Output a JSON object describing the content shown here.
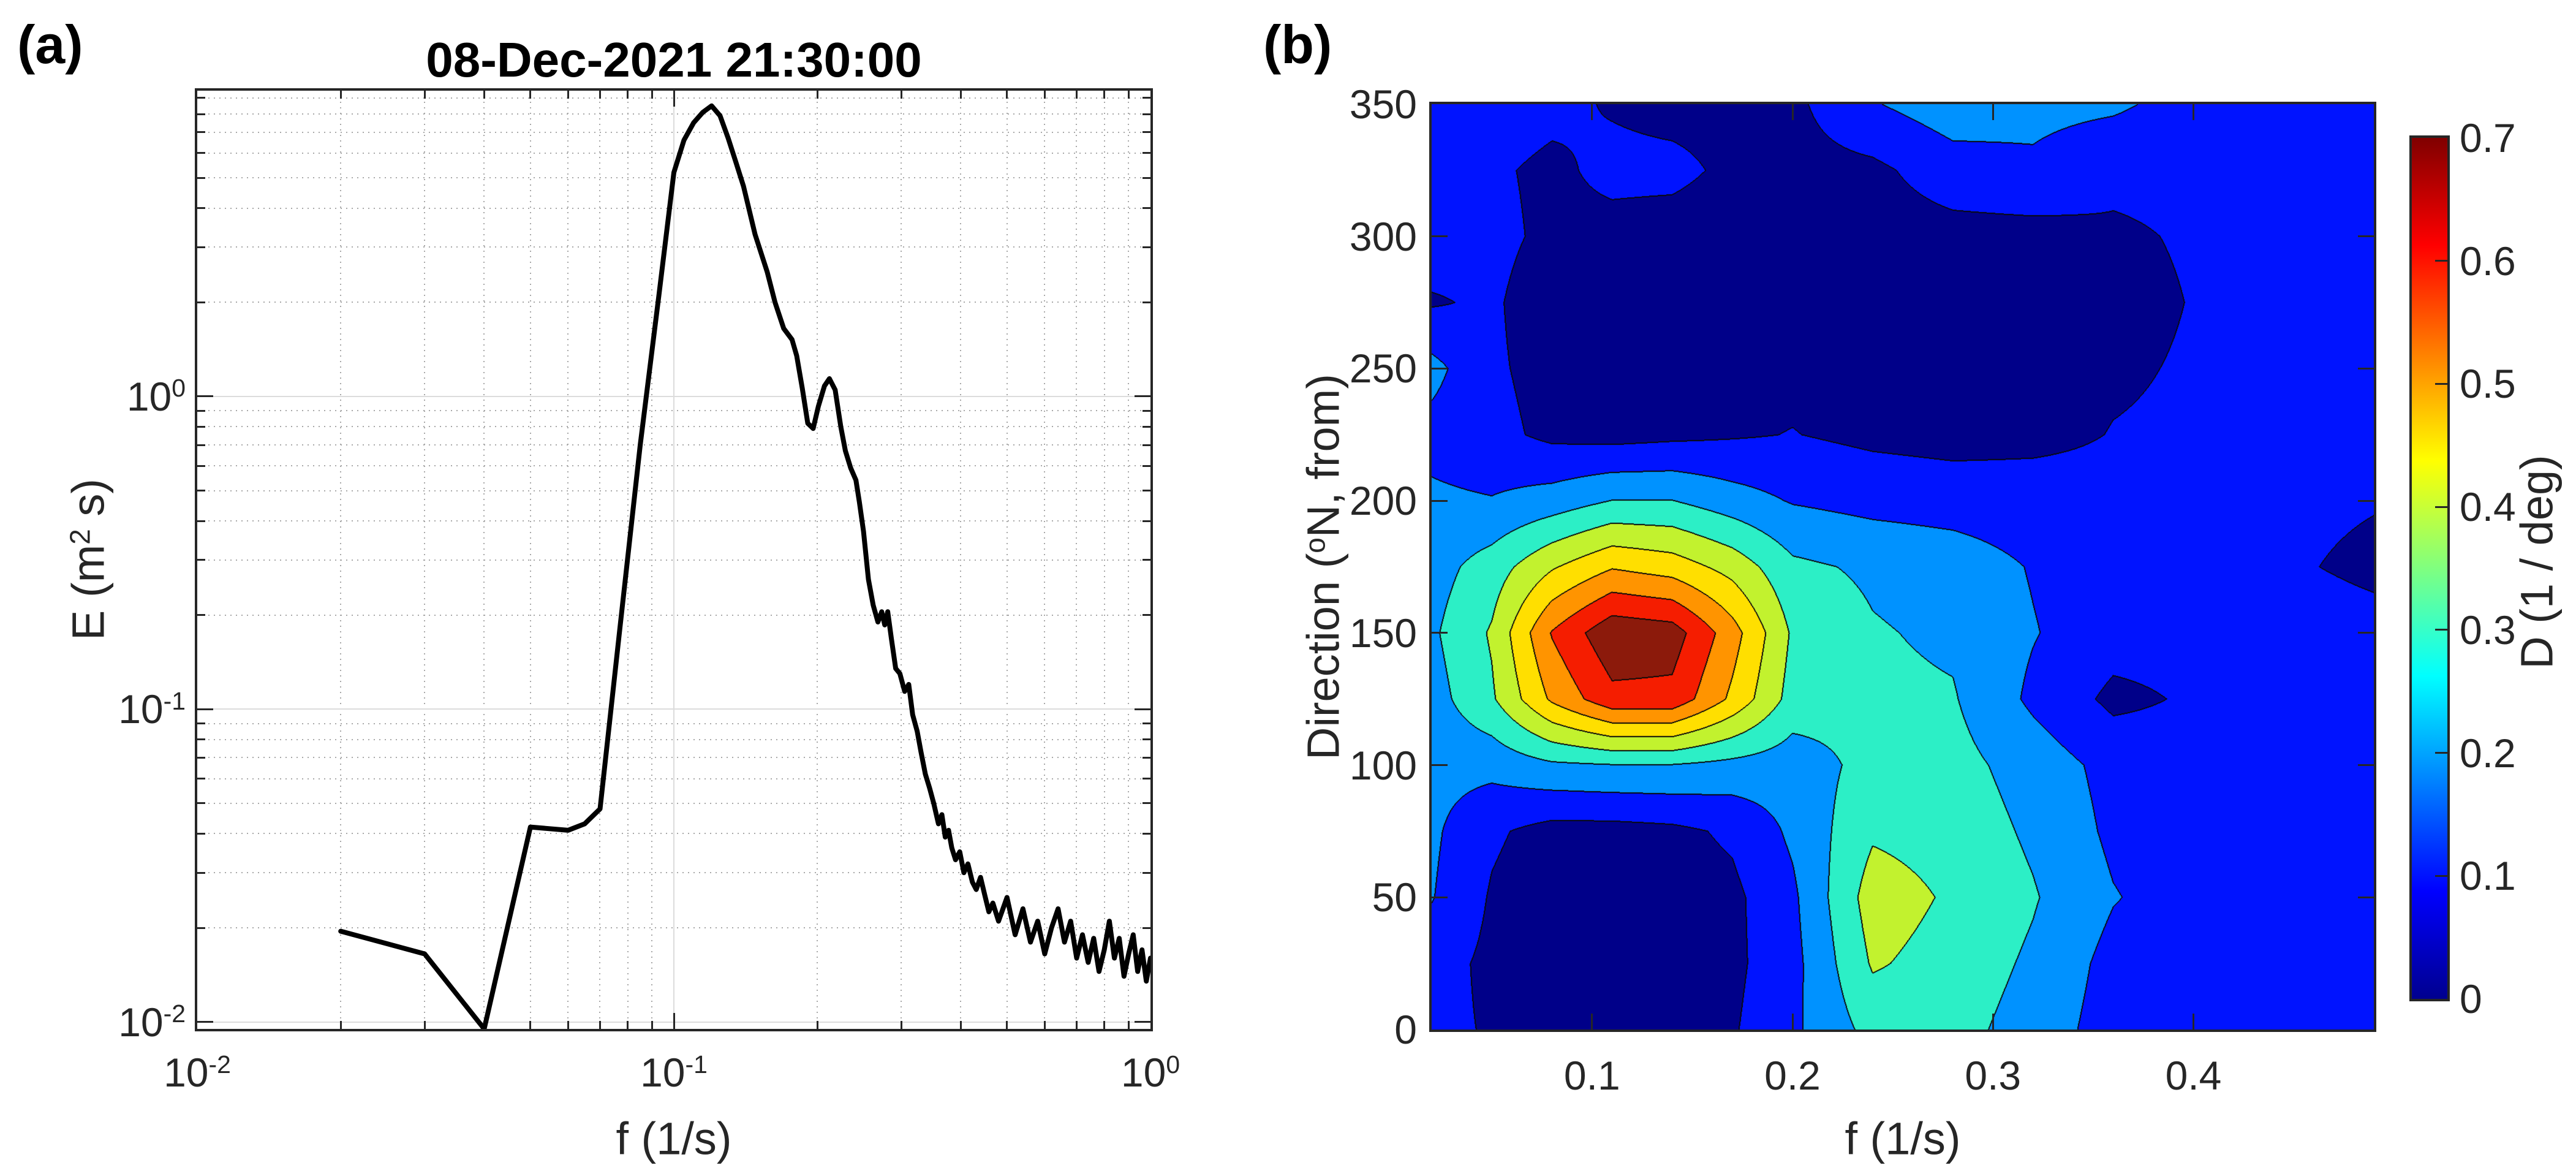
{
  "figure": {
    "background": "#ffffff",
    "panel_a": {
      "label": "(a)",
      "title": "08-Dec-2021 21:30:00",
      "xlabel": "f (1/s)",
      "ylabel_pre": "E (m",
      "ylabel_sup": "2",
      "ylabel_post": " s)",
      "xticks": [
        {
          "value": 0.01,
          "base": "10",
          "exp": "-2"
        },
        {
          "value": 0.1,
          "base": "10",
          "exp": "-1"
        },
        {
          "value": 1,
          "base": "10",
          "exp": "0"
        }
      ],
      "yticks": [
        {
          "value": 0.01,
          "base": "10",
          "exp": "-2"
        },
        {
          "value": 0.1,
          "base": "10",
          "exp": "-1"
        },
        {
          "value": 1,
          "base": "10",
          "exp": "0"
        }
      ]
    },
    "panel_b": {
      "label": "(b)",
      "xlabel": "f (1/s)",
      "ylabel_pre": "Direction (",
      "ylabel_sup": "o",
      "ylabel_post": "N, from)",
      "xticks": [
        {
          "value": 0.1,
          "label": "0.1"
        },
        {
          "value": 0.2,
          "label": "0.2"
        },
        {
          "value": 0.3,
          "label": "0.3"
        },
        {
          "value": 0.4,
          "label": "0.4"
        }
      ],
      "yticks": [
        {
          "value": 0,
          "label": "0"
        },
        {
          "value": 50,
          "label": "50"
        },
        {
          "value": 100,
          "label": "100"
        },
        {
          "value": 150,
          "label": "150"
        },
        {
          "value": 200,
          "label": "200"
        },
        {
          "value": 250,
          "label": "250"
        },
        {
          "value": 300,
          "label": "300"
        },
        {
          "value": 350,
          "label": "350"
        }
      ]
    },
    "colorbar": {
      "label": "D (1 / deg)",
      "ticks": [
        {
          "value": 0,
          "label": "0"
        },
        {
          "value": 0.1,
          "label": "0.1"
        },
        {
          "value": 0.2,
          "label": "0.2"
        },
        {
          "value": 0.3,
          "label": "0.3"
        },
        {
          "value": 0.4,
          "label": "0.4"
        },
        {
          "value": 0.5,
          "label": "0.5"
        },
        {
          "value": 0.6,
          "label": "0.6"
        },
        {
          "value": 0.7,
          "label": "0.7"
        }
      ],
      "gradient_stops_bottom_to_top": [
        "#00008F",
        "#0000FF",
        "#00FFFF",
        "#FFFF00",
        "#FF0000",
        "#800000"
      ],
      "gradient_positions": [
        0,
        0.125,
        0.375,
        0.625,
        0.875,
        1
      ]
    },
    "style_colors": {
      "axis": "#262626",
      "curve": "#000000",
      "grid_major": "#dcdcdc",
      "grid_minor_dot": "#a8a8a8",
      "contour_line": "#0a0a0a"
    }
  },
  "chart_data": [
    {
      "type": "line",
      "panel": "a",
      "title": "08-Dec-2021 21:30:00",
      "xlabel": "f (1/s)",
      "ylabel": "E (m^2 s)",
      "xscale": "log",
      "yscale": "log",
      "xlim": [
        0.01,
        1
      ],
      "ylim": [
        0.0095,
        9.5
      ],
      "grid": true,
      "line_color": "#000000",
      "x": [
        0.02,
        0.03,
        0.04,
        0.05,
        0.06,
        0.065,
        0.07,
        0.077,
        0.085,
        0.093,
        0.1,
        0.105,
        0.11,
        0.115,
        0.12,
        0.125,
        0.13,
        0.135,
        0.14,
        0.148,
        0.157,
        0.163,
        0.17,
        0.177,
        0.181,
        0.186,
        0.191,
        0.196,
        0.201,
        0.207,
        0.212,
        0.218,
        0.224,
        0.229,
        0.235,
        0.241,
        0.245,
        0.25,
        0.256,
        0.262,
        0.268,
        0.273,
        0.277,
        0.281,
        0.286,
        0.292,
        0.298,
        0.305,
        0.311,
        0.317,
        0.324,
        0.33,
        0.337,
        0.344,
        0.351,
        0.359,
        0.365,
        0.371,
        0.377,
        0.383,
        0.39,
        0.398,
        0.406,
        0.414,
        0.423,
        0.431,
        0.44,
        0.449,
        0.458,
        0.467,
        0.48,
        0.5,
        0.52,
        0.54,
        0.56,
        0.58,
        0.6,
        0.62,
        0.64,
        0.66,
        0.68,
        0.7,
        0.72,
        0.74,
        0.76,
        0.78,
        0.8,
        0.82,
        0.84,
        0.86,
        0.88,
        0.9,
        0.92,
        0.94,
        0.96,
        0.98,
        1.0
      ],
      "y": [
        0.0195,
        0.0165,
        0.0095,
        0.042,
        0.041,
        0.043,
        0.048,
        0.18,
        0.7,
        2.1,
        5.2,
        6.6,
        7.5,
        8.1,
        8.5,
        7.9,
        6.7,
        5.6,
        4.7,
        3.3,
        2.5,
        2.0,
        1.65,
        1.52,
        1.35,
        1.06,
        0.82,
        0.79,
        0.93,
        1.08,
        1.14,
        1.05,
        0.8,
        0.67,
        0.59,
        0.54,
        0.46,
        0.37,
        0.26,
        0.215,
        0.19,
        0.205,
        0.186,
        0.205,
        0.168,
        0.135,
        0.13,
        0.114,
        0.12,
        0.096,
        0.085,
        0.073,
        0.062,
        0.056,
        0.05,
        0.043,
        0.046,
        0.039,
        0.041,
        0.036,
        0.033,
        0.035,
        0.03,
        0.032,
        0.028,
        0.0265,
        0.029,
        0.0255,
        0.0225,
        0.024,
        0.021,
        0.025,
        0.019,
        0.023,
        0.018,
        0.021,
        0.0165,
        0.02,
        0.023,
        0.018,
        0.021,
        0.016,
        0.019,
        0.0155,
        0.0185,
        0.0145,
        0.017,
        0.021,
        0.016,
        0.0185,
        0.014,
        0.0165,
        0.019,
        0.0145,
        0.017,
        0.0135,
        0.016
      ]
    },
    {
      "type": "heatmap",
      "panel": "b",
      "xlabel": "f (1/s)",
      "ylabel": "Direction (degN, from)",
      "colorbar_label": "D (1 / deg)",
      "xlim": [
        0.02,
        0.49
      ],
      "ylim": [
        0,
        350
      ],
      "clim": [
        0,
        0.7
      ],
      "x_f": [
        0.02,
        0.05,
        0.08,
        0.11,
        0.14,
        0.17,
        0.2,
        0.24,
        0.28,
        0.32,
        0.36,
        0.42,
        0.49
      ],
      "y_direction": [
        0,
        25,
        50,
        75,
        100,
        125,
        150,
        175,
        200,
        225,
        250,
        275,
        300,
        325,
        350
      ],
      "values_D": [
        [
          0.1,
          0.07,
          0.05,
          0.04,
          0.05,
          0.07,
          0.14,
          0.26,
          0.26,
          0.2,
          0.12,
          0.1,
          0.1
        ],
        [
          0.11,
          0.06,
          0.04,
          0.03,
          0.04,
          0.06,
          0.13,
          0.32,
          0.28,
          0.22,
          0.13,
          0.1,
          0.1
        ],
        [
          0.16,
          0.07,
          0.03,
          0.025,
          0.04,
          0.06,
          0.14,
          0.35,
          0.3,
          0.24,
          0.16,
          0.1,
          0.1
        ],
        [
          0.17,
          0.09,
          0.05,
          0.05,
          0.06,
          0.09,
          0.17,
          0.3,
          0.28,
          0.22,
          0.14,
          0.1,
          0.1
        ],
        [
          0.18,
          0.18,
          0.22,
          0.23,
          0.23,
          0.21,
          0.19,
          0.26,
          0.26,
          0.2,
          0.13,
          0.1,
          0.1
        ],
        [
          0.2,
          0.3,
          0.48,
          0.6,
          0.6,
          0.45,
          0.28,
          0.25,
          0.24,
          0.14,
          0.06,
          0.1,
          0.1
        ],
        [
          0.22,
          0.32,
          0.55,
          0.68,
          0.66,
          0.5,
          0.3,
          0.24,
          0.22,
          0.16,
          0.11,
          0.1,
          0.09
        ],
        [
          0.2,
          0.27,
          0.38,
          0.46,
          0.43,
          0.36,
          0.25,
          0.22,
          0.2,
          0.15,
          0.11,
          0.09,
          0.07
        ],
        [
          0.17,
          0.16,
          0.19,
          0.235,
          0.235,
          0.19,
          0.15,
          0.13,
          0.12,
          0.11,
          0.1,
          0.09,
          0.08
        ],
        [
          0.13,
          0.1,
          0.06,
          0.05,
          0.06,
          0.07,
          0.08,
          0.06,
          0.05,
          0.06,
          0.08,
          0.09,
          0.09
        ],
        [
          0.18,
          0.09,
          0.05,
          0.04,
          0.05,
          0.05,
          0.06,
          0.05,
          0.04,
          0.05,
          0.07,
          0.09,
          0.09
        ],
        [
          0.07,
          0.09,
          0.03,
          0.02,
          0.03,
          0.03,
          0.04,
          0.03,
          0.03,
          0.04,
          0.06,
          0.09,
          0.1
        ],
        [
          0.12,
          0.1,
          0.06,
          0.05,
          0.04,
          0.03,
          0.03,
          0.04,
          0.05,
          0.05,
          0.07,
          0.09,
          0.1
        ],
        [
          0.13,
          0.09,
          0.06,
          0.1,
          0.1,
          0.06,
          0.05,
          0.06,
          0.12,
          0.14,
          0.09,
          0.09,
          0.1
        ],
        [
          0.14,
          0.12,
          0.1,
          0.07,
          0.05,
          0.05,
          0.06,
          0.15,
          0.2,
          0.18,
          0.17,
          0.1,
          0.1
        ]
      ],
      "contour_band_colors_low_to_high": [
        "#000089",
        "#0013FF",
        "#0092FF",
        "#2CEFC6",
        "#C2F22E",
        "#FFDF00",
        "#FF9400",
        "#F51D00",
        "#8C1A0B"
      ],
      "legend_position": "right-colorbar"
    }
  ]
}
